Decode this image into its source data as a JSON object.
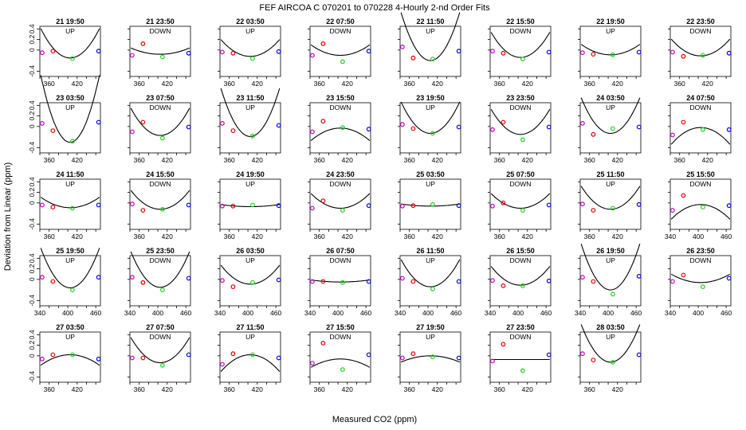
{
  "chart_data": {
    "type": "scatter",
    "title": "FEF   AIRCOA C   070201 to 070228   4-Hourly 2-nd Order Fits",
    "xlabel": "Measured CO2 (ppm)",
    "ylabel": "Deviation from Linear (ppm)",
    "xlim": [
      340,
      470
    ],
    "ylim": [
      -0.5,
      0.45
    ],
    "y_ticks": [
      -0.4,
      0,
      0.2,
      0.4
    ],
    "point_x": [
      345,
      368,
      410,
      466
    ],
    "point_colors": [
      "#c000c0",
      "#e00000",
      "#20d020",
      "#0000e0"
    ],
    "panels": [
      {
        "label": "21 19:50",
        "direction": "UP",
        "y": [
          -0.05,
          -0.02,
          -0.16,
          -0.02
        ],
        "coef": [
          0.00014,
          -0.15
        ],
        "bottom_ticks": [
          360,
          420
        ]
      },
      {
        "label": "21 23:50",
        "direction": "DOWN",
        "y": [
          -0.1,
          0.12,
          -0.13,
          -0.06
        ],
        "coef": [
          3e-05,
          -0.08
        ],
        "bottom_ticks": [
          360,
          420
        ]
      },
      {
        "label": "22 03:50",
        "direction": "UP",
        "y": [
          -0.04,
          -0.06,
          -0.16,
          -0.03
        ],
        "coef": [
          8e-05,
          -0.12
        ],
        "bottom_ticks": [
          360,
          420
        ]
      },
      {
        "label": "22 07:50",
        "direction": "DOWN",
        "y": [
          -0.1,
          0.12,
          -0.22,
          -0.02
        ],
        "coef": [
          5e-05,
          -0.1
        ],
        "bottom_ticks": [
          360,
          420
        ]
      },
      {
        "label": "22 11:50",
        "direction": "UP",
        "y": [
          0.06,
          -0.15,
          -0.17,
          -0.02
        ],
        "coef": [
          0.00023,
          -0.2
        ],
        "bottom_ticks": [
          360,
          420
        ]
      },
      {
        "label": "22 15:50",
        "direction": "DOWN",
        "y": [
          -0.02,
          -0.06,
          -0.17,
          -0.04
        ],
        "coef": [
          0.00012,
          -0.14
        ],
        "bottom_ticks": [
          360,
          420
        ]
      },
      {
        "label": "22 19:50",
        "direction": "UP",
        "y": [
          -0.05,
          -0.08,
          -0.09,
          -0.04
        ],
        "coef": [
          5e-05,
          -0.09
        ],
        "bottom_ticks": [
          360,
          420
        ]
      },
      {
        "label": "22 23:50",
        "direction": "DOWN",
        "y": [
          -0.04,
          -0.12,
          -0.1,
          -0.06
        ],
        "coef": [
          8e-05,
          -0.11
        ],
        "bottom_ticks": [
          360,
          420
        ]
      },
      {
        "label": "23 03:50",
        "direction": "UP",
        "y": [
          0.06,
          -0.08,
          -0.28,
          0.08
        ],
        "coef": [
          0.00032,
          -0.3
        ],
        "bottom_ticks": [
          360,
          420
        ]
      },
      {
        "label": "23 07:50",
        "direction": "DOWN",
        "y": [
          -0.1,
          0.08,
          -0.22,
          -0.01
        ],
        "coef": [
          0.00013,
          -0.17
        ],
        "bottom_ticks": [
          360,
          420
        ]
      },
      {
        "label": "23 11:50",
        "direction": "UP",
        "y": [
          0.06,
          -0.08,
          -0.18,
          0.02
        ],
        "coef": [
          0.00023,
          -0.19
        ],
        "bottom_ticks": [
          360,
          420
        ]
      },
      {
        "label": "23 15:50",
        "direction": "DOWN",
        "y": [
          -0.1,
          0.1,
          -0.02,
          -0.05
        ],
        "coef": [
          -6e-05,
          -0.03
        ],
        "bottom_ticks": [
          360,
          420
        ]
      },
      {
        "label": "23 19:50",
        "direction": "UP",
        "y": [
          0.04,
          -0.04,
          -0.13,
          -0.01
        ],
        "coef": [
          0.00015,
          -0.13
        ],
        "bottom_ticks": [
          360,
          420
        ]
      },
      {
        "label": "23 23:50",
        "direction": "DOWN",
        "y": [
          -0.06,
          0.08,
          -0.25,
          -0.01
        ],
        "coef": [
          0.00012,
          -0.15
        ],
        "bottom_ticks": [
          360,
          420
        ]
      },
      {
        "label": "24 03:50",
        "direction": "UP",
        "y": [
          0.06,
          -0.15,
          -0.04,
          -0.01
        ],
        "coef": [
          0.00017,
          -0.13
        ],
        "bottom_ticks": [
          360,
          420
        ]
      },
      {
        "label": "24 07:50",
        "direction": "DOWN",
        "y": [
          -0.16,
          0.08,
          -0.06,
          -0.06
        ],
        "coef": [
          -8e-05,
          -0.02
        ],
        "bottom_ticks": [
          360,
          420
        ]
      },
      {
        "label": "24 11:50",
        "direction": "UP",
        "y": [
          -0.04,
          -0.08,
          -0.1,
          -0.04
        ],
        "coef": [
          5e-05,
          -0.09
        ],
        "bottom_ticks": [
          360,
          420
        ]
      },
      {
        "label": "24 15:50",
        "direction": "DOWN",
        "y": [
          -0.02,
          -0.14,
          -0.12,
          -0.04
        ],
        "coef": [
          9e-05,
          -0.12
        ],
        "bottom_ticks": [
          360,
          420
        ]
      },
      {
        "label": "24 19:50",
        "direction": "UP",
        "y": [
          -0.06,
          -0.06,
          -0.04,
          -0.05
        ],
        "coef": [
          1e-05,
          -0.07
        ],
        "bottom_ticks": [
          360,
          420
        ]
      },
      {
        "label": "24 23:50",
        "direction": "DOWN",
        "y": [
          -0.1,
          0.04,
          -0.14,
          -0.05
        ],
        "coef": [
          7e-05,
          -0.1
        ],
        "bottom_ticks": [
          360,
          420
        ]
      },
      {
        "label": "25 03:50",
        "direction": "UP",
        "y": [
          -0.06,
          -0.05,
          -0.03,
          -0.05
        ],
        "coef": [
          1e-05,
          -0.06
        ],
        "bottom_ticks": [
          360,
          420
        ]
      },
      {
        "label": "25 07:50",
        "direction": "DOWN",
        "y": [
          -0.06,
          0.0,
          -0.14,
          -0.04
        ],
        "coef": [
          7e-05,
          -0.1
        ],
        "bottom_ticks": [
          360,
          420
        ]
      },
      {
        "label": "25 11:50",
        "direction": "UP",
        "y": [
          -0.02,
          -0.14,
          -0.1,
          -0.03
        ],
        "coef": [
          0.00011,
          -0.12
        ],
        "bottom_ticks": [
          360,
          420
        ]
      },
      {
        "label": "25 15:50",
        "direction": "DOWN",
        "y": [
          -0.14,
          0.14,
          -0.08,
          -0.05
        ],
        "coef": [
          -7e-05,
          -0.03
        ],
        "bottom_ticks": [
          340,
          400,
          460
        ]
      },
      {
        "label": "25 19:50",
        "direction": "UP",
        "y": [
          0.04,
          -0.04,
          -0.2,
          0.04
        ],
        "coef": [
          0.00019,
          -0.16
        ],
        "bottom_ticks": [
          340,
          400,
          460
        ]
      },
      {
        "label": "25 23:50",
        "direction": "DOWN",
        "y": [
          0.04,
          -0.06,
          -0.2,
          0.02
        ],
        "coef": [
          0.00017,
          -0.15
        ],
        "bottom_ticks": [
          340,
          400,
          460
        ]
      },
      {
        "label": "26 03:50",
        "direction": "UP",
        "y": [
          -0.02,
          -0.14,
          -0.06,
          -0.01
        ],
        "coef": [
          9e-05,
          -0.09
        ],
        "bottom_ticks": [
          340,
          400,
          460
        ]
      },
      {
        "label": "26 07:50",
        "direction": "DOWN",
        "y": [
          -0.04,
          -0.04,
          -0.06,
          -0.04
        ],
        "coef": [
          1e-05,
          -0.05
        ],
        "bottom_ticks": [
          340,
          400,
          460
        ]
      },
      {
        "label": "26 11:50",
        "direction": "UP",
        "y": [
          0.02,
          -0.04,
          -0.18,
          -0.04
        ],
        "coef": [
          0.00013,
          -0.14
        ],
        "bottom_ticks": [
          340,
          400,
          460
        ]
      },
      {
        "label": "26 15:50",
        "direction": "DOWN",
        "y": [
          -0.02,
          -0.12,
          -0.12,
          -0.03
        ],
        "coef": [
          9e-05,
          -0.11
        ],
        "bottom_ticks": [
          340,
          400,
          460
        ]
      },
      {
        "label": "26 19:50",
        "direction": "UP",
        "y": [
          0.04,
          -0.04,
          -0.28,
          0.06
        ],
        "coef": [
          0.00022,
          -0.2
        ],
        "bottom_ticks": [
          340,
          400,
          460
        ]
      },
      {
        "label": "26 23:50",
        "direction": "DOWN",
        "y": [
          -0.04,
          0.08,
          -0.14,
          0.02
        ],
        "coef": [
          4e-05,
          -0.06
        ],
        "bottom_ticks": [
          340,
          400,
          460
        ]
      },
      {
        "label": "27 03:50",
        "direction": "UP",
        "y": [
          -0.06,
          0.02,
          0.02,
          -0.06
        ],
        "coef": [
          -5e-05,
          0.02
        ],
        "bottom_ticks": [
          360,
          420
        ]
      },
      {
        "label": "27 07:50",
        "direction": "DOWN",
        "y": [
          -0.04,
          -0.04,
          -0.18,
          0.02
        ],
        "coef": [
          0.00012,
          -0.13
        ],
        "bottom_ticks": [
          360,
          420
        ]
      },
      {
        "label": "27 11:50",
        "direction": "UP",
        "y": [
          -0.16,
          0.04,
          0.02,
          -0.04
        ],
        "coef": [
          -8e-05,
          0.02
        ],
        "bottom_ticks": [
          360,
          420
        ]
      },
      {
        "label": "27 15:50",
        "direction": "DOWN",
        "y": [
          -0.14,
          0.24,
          -0.26,
          0.02
        ],
        "coef": [
          -4e-05,
          -0.06
        ],
        "bottom_ticks": [
          360,
          420
        ]
      },
      {
        "label": "27 19:50",
        "direction": "UP",
        "y": [
          -0.04,
          0.04,
          -0.02,
          -0.04
        ],
        "coef": [
          -3e-05,
          0.0
        ],
        "bottom_ticks": [
          360,
          420
        ]
      },
      {
        "label": "27 23:50",
        "direction": "DOWN",
        "y": [
          -0.1,
          0.22,
          -0.28,
          0.02
        ],
        "coef": [
          0.0,
          -0.07
        ],
        "bottom_ticks": [
          360,
          420
        ]
      },
      {
        "label": "28 03:50",
        "direction": "UP",
        "y": [
          0.04,
          -0.08,
          -0.12,
          0.02
        ],
        "coef": [
          0.00018,
          -0.12
        ],
        "bottom_ticks": [
          360,
          420
        ]
      }
    ]
  }
}
